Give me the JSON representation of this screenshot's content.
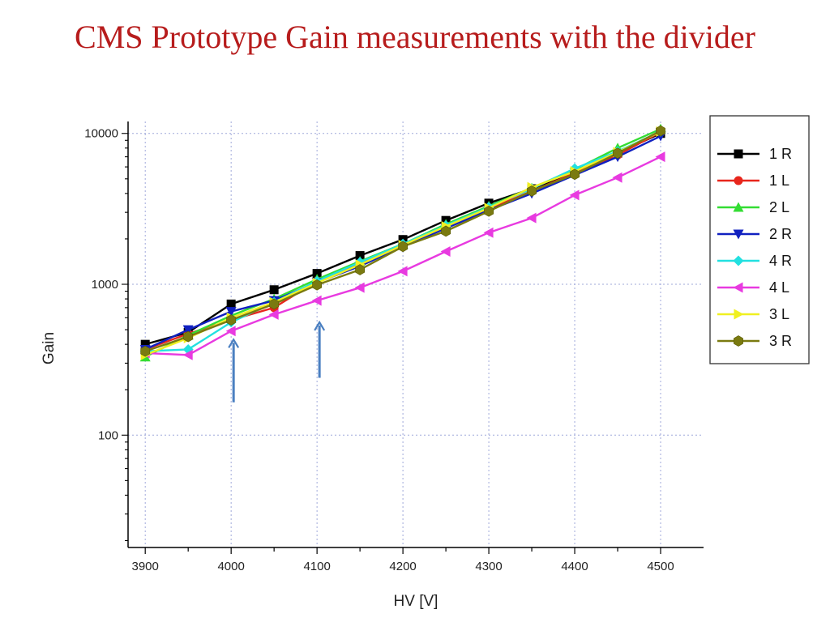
{
  "slide": {
    "title": "CMS Prototype Gain measurements with the divider"
  },
  "chart_data": {
    "type": "line",
    "xlabel": "HV [V]",
    "ylabel": "Gain",
    "x_scale": "linear",
    "y_scale": "log",
    "xlim": [
      3880,
      4550
    ],
    "ylim": [
      18,
      12000
    ],
    "x_ticks": [
      3900,
      4000,
      4100,
      4200,
      4300,
      4400,
      4500
    ],
    "y_ticks": [
      100,
      1000,
      10000
    ],
    "y_tick_labels": [
      "100",
      "1000",
      "10000"
    ],
    "grid": true,
    "legend_position": "top-right",
    "x": [
      3900,
      3950,
      4000,
      4050,
      4100,
      4150,
      4200,
      4250,
      4300,
      4350,
      4400,
      4450,
      4500
    ],
    "series": [
      {
        "name": "1 R",
        "color": "#000000",
        "marker": "square",
        "values": [
          400,
          480,
          740,
          920,
          1180,
          1550,
          1980,
          2650,
          3450,
          4300,
          5500,
          7400,
          10000
        ]
      },
      {
        "name": "1 L",
        "color": "#e8261c",
        "marker": "circle",
        "values": [
          370,
          470,
          580,
          700,
          1050,
          1380,
          1800,
          2400,
          3150,
          4150,
          5450,
          7200,
          10200
        ]
      },
      {
        "name": "2 L",
        "color": "#33dd33",
        "marker": "triangle-up",
        "values": [
          330,
          460,
          620,
          800,
          1080,
          1420,
          1850,
          2500,
          3300,
          4350,
          5750,
          8000,
          10700
        ]
      },
      {
        "name": "2 R",
        "color": "#1020c0",
        "marker": "triangle-down",
        "values": [
          370,
          500,
          660,
          780,
          1030,
          1320,
          1780,
          2350,
          3100,
          4000,
          5300,
          7000,
          9600
        ]
      },
      {
        "name": "4 R",
        "color": "#22e0e0",
        "marker": "diamond",
        "values": [
          360,
          370,
          560,
          760,
          1050,
          1400,
          1850,
          2450,
          3250,
          4300,
          5850,
          7600,
          10300
        ]
      },
      {
        "name": "4 L",
        "color": "#e83ae0",
        "marker": "triangle-left",
        "values": [
          350,
          340,
          490,
          630,
          780,
          950,
          1220,
          1650,
          2200,
          2750,
          3900,
          5100,
          7000
        ]
      },
      {
        "name": "3 L",
        "color": "#f0f020",
        "marker": "triangle-right",
        "values": [
          340,
          440,
          600,
          760,
          1020,
          1350,
          1820,
          2420,
          3200,
          4400,
          5600,
          7500,
          10300
        ]
      },
      {
        "name": "3 R",
        "color": "#7a7a10",
        "marker": "hexagon",
        "values": [
          360,
          450,
          580,
          740,
          990,
          1250,
          1780,
          2250,
          3050,
          4150,
          5350,
          7400,
          10400
        ]
      }
    ],
    "arrows": [
      {
        "x": 4000,
        "tip_gain": 430,
        "tail_gain": 165,
        "color": "#4a7fc1"
      },
      {
        "x": 4100,
        "tip_gain": 560,
        "tail_gain": 240,
        "color": "#4a7fc1"
      }
    ]
  }
}
